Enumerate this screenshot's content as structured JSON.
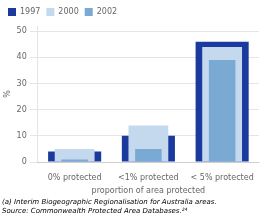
{
  "chart_data": {
    "type": "bar",
    "xlabel": "proportion of area protected",
    "ylabel": "%",
    "annotations": [
      "(a) Interim Biogeographic Regionalisation for Australia areas.",
      "Source: Commonwealth Protected Area Databases.²⁴"
    ],
    "categories": [
      "0% protected",
      "<1% protected",
      "< 5% protected"
    ],
    "series": [
      {
        "name": "1997",
        "color": "#1a3a9e",
        "values": [
          4,
          10,
          46
        ]
      },
      {
        "name": "2000",
        "color": "#c5d9ee",
        "values": [
          5,
          14,
          44
        ]
      },
      {
        "name": "2002",
        "color": "#7aaad4",
        "values": [
          1,
          5,
          39
        ]
      }
    ],
    "ylim": [
      0,
      52
    ],
    "yticks": [
      0,
      10,
      20,
      30,
      40,
      50
    ],
    "grid": true,
    "legend": "upper left"
  }
}
